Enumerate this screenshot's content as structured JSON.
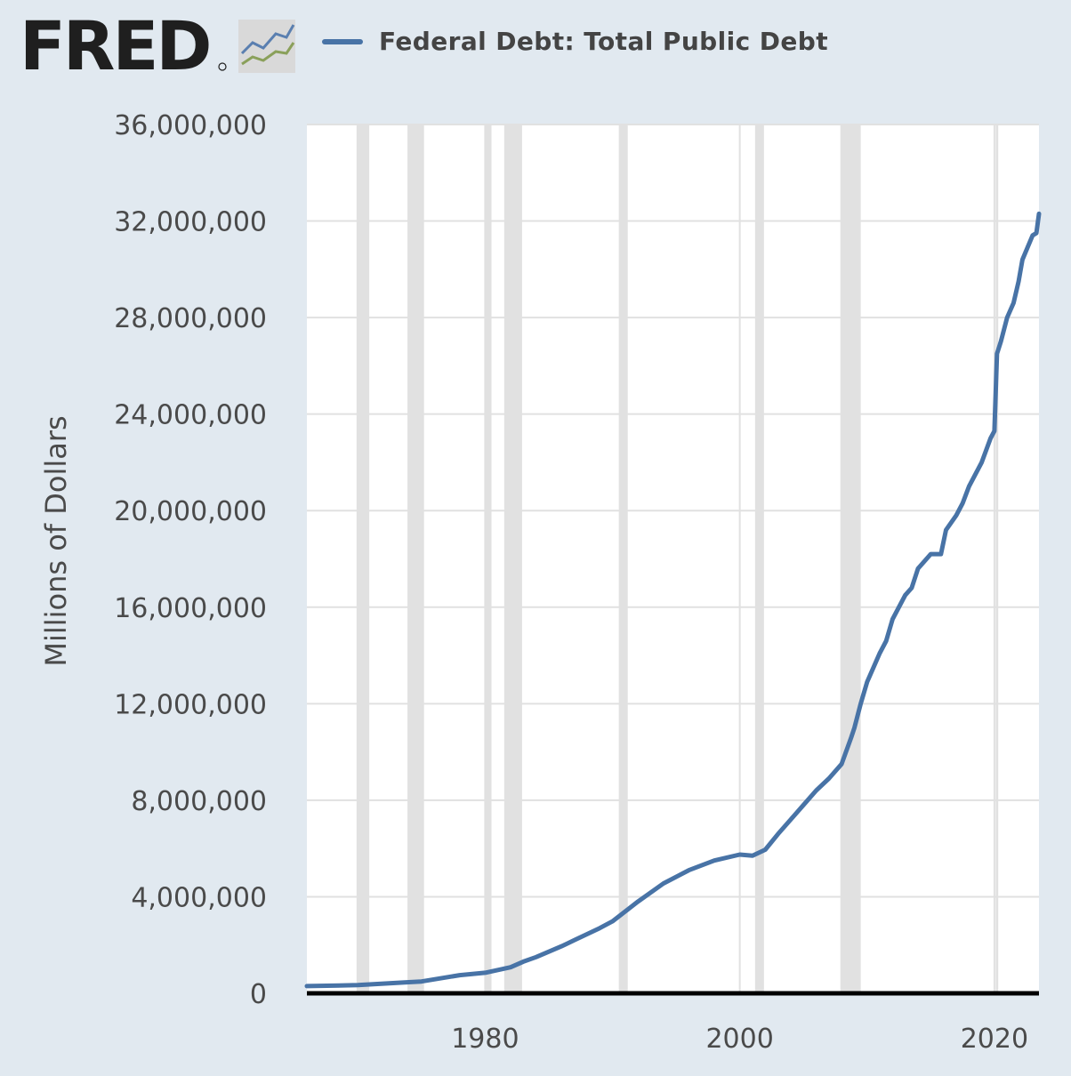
{
  "brand": {
    "name": "FRED"
  },
  "colors": {
    "series": "#4873a6",
    "recession": "#e1e1e1",
    "grid": "#e1e1e1",
    "plot_bg": "#ffffff",
    "page_bg": "#e1e9f0"
  },
  "chart_data": {
    "type": "line",
    "title": "",
    "xlabel": "",
    "ylabel": "Millions of Dollars",
    "xlim": [
      1966,
      2023.5
    ],
    "ylim": [
      0,
      36000000
    ],
    "y_ticks": [
      0,
      4000000,
      8000000,
      12000000,
      16000000,
      20000000,
      24000000,
      28000000,
      32000000,
      36000000
    ],
    "y_tick_labels": [
      "0",
      "4,000,000",
      "8,000,000",
      "12,000,000",
      "16,000,000",
      "20,000,000",
      "24,000,000",
      "28,000,000",
      "32,000,000",
      "36,000,000"
    ],
    "x_ticks": [
      1980,
      2000,
      2020
    ],
    "x_tick_labels": [
      "1980",
      "2000",
      "2020"
    ],
    "grid": true,
    "legend_position": "top",
    "recessions": [
      [
        1969.9,
        1970.9
      ],
      [
        1973.9,
        1975.2
      ],
      [
        1980.0,
        1980.5
      ],
      [
        1981.5,
        1982.9
      ],
      [
        1990.5,
        1991.2
      ],
      [
        2001.2,
        2001.9
      ],
      [
        2007.9,
        2009.5
      ],
      [
        2020.1,
        2020.3
      ]
    ],
    "series": [
      {
        "name": "Federal Debt: Total Public Debt",
        "x": [
          1966,
          1970,
          1974,
          1975,
          1978,
          1980,
          1982,
          1983,
          1984,
          1986,
          1987,
          1989,
          1990,
          1992,
          1994,
          1996,
          1998,
          2000,
          2001,
          2002,
          2003,
          2004,
          2005,
          2006,
          2007,
          2008,
          2008.75,
          2009,
          2009.5,
          2010,
          2011,
          2011.5,
          2012,
          2013,
          2013.5,
          2014,
          2015,
          2015.8,
          2016.2,
          2017,
          2017.5,
          2018,
          2019,
          2019.7,
          2020.0,
          2020.2,
          2020.5,
          2021,
          2021.5,
          2021.9,
          2022.2,
          2023.0,
          2023.3,
          2023.5
        ],
        "y": [
          300000,
          340000,
          460000,
          490000,
          750000,
          850000,
          1080000,
          1310000,
          1500000,
          1950000,
          2200000,
          2700000,
          2980000,
          3800000,
          4550000,
          5100000,
          5500000,
          5750000,
          5700000,
          5950000,
          6600000,
          7200000,
          7800000,
          8400000,
          8900000,
          9500000,
          10600000,
          11000000,
          12000000,
          12900000,
          14100000,
          14600000,
          15500000,
          16500000,
          16800000,
          17600000,
          18200000,
          18200000,
          19200000,
          19800000,
          20300000,
          21000000,
          22000000,
          23000000,
          23300000,
          26500000,
          27000000,
          28000000,
          28600000,
          29500000,
          30400000,
          31400000,
          31500000,
          32300000
        ]
      }
    ]
  }
}
